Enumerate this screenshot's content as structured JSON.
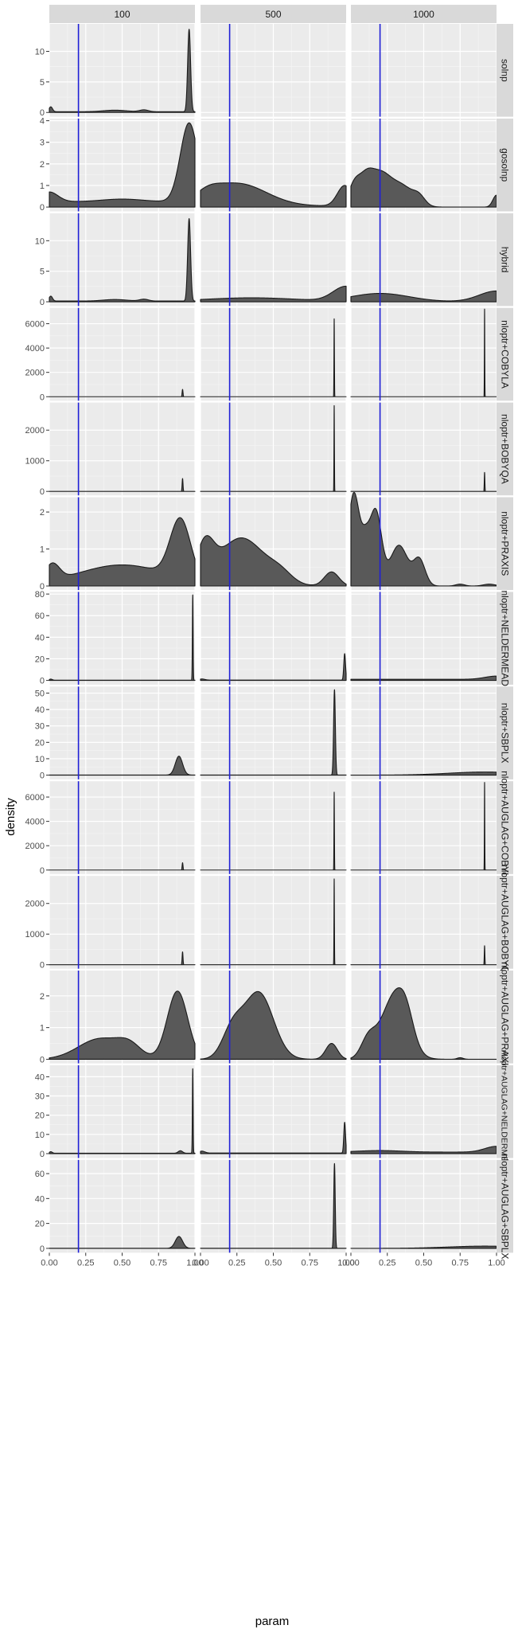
{
  "chart_data": {
    "type": "area",
    "xlabel": "param",
    "ylabel": "density",
    "xlim": [
      0,
      1
    ],
    "x_ticks": [
      "0.00",
      "0.25",
      "0.50",
      "0.75",
      "1.00"
    ],
    "reference_line": {
      "x": 0.2,
      "color": "#1f1fd6"
    },
    "columns": [
      "100",
      "500",
      "1000"
    ],
    "grid": true,
    "colors": {
      "panel_bg": "#ebebeb",
      "grid": "#ffffff",
      "strip_bg": "#d9d9d9",
      "fill": "#595959",
      "outline": "#1a1a1a"
    },
    "rows": [
      {
        "label": "solnp",
        "ylim": [
          -0.7,
          14.5
        ],
        "y_ticks": [
          {
            "v": 0,
            "label": "0"
          },
          {
            "v": 5,
            "label": "5"
          },
          {
            "v": 10,
            "label": "10"
          }
        ],
        "panels": [
          {
            "peaks": [
              {
                "c": 0.01,
                "w": 0.012,
                "h": 0.8
              },
              {
                "c": 0.45,
                "w": 0.08,
                "h": 0.25
              },
              {
                "c": 0.65,
                "w": 0.03,
                "h": 0.3
              },
              {
                "c": 0.96,
                "w": 0.01,
                "h": 13.5
              }
            ],
            "base": 0.12
          },
          null,
          null
        ]
      },
      {
        "label": "gosolnp",
        "ylim": [
          -0.2,
          4.1
        ],
        "y_ticks": [
          {
            "v": 0,
            "label": "0"
          },
          {
            "v": 1,
            "label": "1"
          },
          {
            "v": 2,
            "label": "2"
          },
          {
            "v": 3,
            "label": "3"
          },
          {
            "v": 4,
            "label": "4"
          }
        ],
        "panels": [
          {
            "peaks": [
              {
                "c": 0.0,
                "w": 0.06,
                "h": 0.45
              },
              {
                "c": 0.5,
                "w": 0.14,
                "h": 0.12
              },
              {
                "c": 0.96,
                "w": 0.06,
                "h": 3.65
              }
            ],
            "base": 0.25
          },
          {
            "peaks": [
              {
                "c": 0.05,
                "w": 0.08,
                "h": 0.3
              },
              {
                "c": 0.25,
                "w": 0.2,
                "h": 1.05
              },
              {
                "c": 0.99,
                "w": 0.05,
                "h": 0.95
              }
            ],
            "base": 0.05
          },
          {
            "peaks": [
              {
                "c": 0.02,
                "w": 0.04,
                "h": 0.9
              },
              {
                "c": 0.1,
                "w": 0.05,
                "h": 1.1
              },
              {
                "c": 0.2,
                "w": 0.07,
                "h": 1.4
              },
              {
                "c": 0.35,
                "w": 0.08,
                "h": 0.95
              },
              {
                "c": 0.47,
                "w": 0.04,
                "h": 0.35
              },
              {
                "c": 1.0,
                "w": 0.025,
                "h": 0.55
              }
            ],
            "base": 0.0
          }
        ]
      },
      {
        "label": "hybrid",
        "ylim": [
          -0.7,
          14.5
        ],
        "y_ticks": [
          {
            "v": 0,
            "label": "0"
          },
          {
            "v": 5,
            "label": "5"
          },
          {
            "v": 10,
            "label": "10"
          }
        ],
        "panels": [
          {
            "peaks": [
              {
                "c": 0.01,
                "w": 0.012,
                "h": 0.8
              },
              {
                "c": 0.45,
                "w": 0.08,
                "h": 0.25
              },
              {
                "c": 0.65,
                "w": 0.03,
                "h": 0.3
              },
              {
                "c": 0.96,
                "w": 0.01,
                "h": 13.5
              }
            ],
            "base": 0.12
          },
          {
            "peaks": [
              {
                "c": 0.35,
                "w": 0.3,
                "h": 0.55
              },
              {
                "c": 1.0,
                "w": 0.09,
                "h": 2.4
              }
            ],
            "base": 0.1
          },
          {
            "peaks": [
              {
                "c": 0.2,
                "w": 0.2,
                "h": 1.35
              },
              {
                "c": 1.0,
                "w": 0.12,
                "h": 1.75
              }
            ],
            "base": 0.02
          }
        ]
      },
      {
        "label": "nloptr+COBYLA",
        "ylim": [
          -330,
          7300
        ],
        "y_ticks": [
          {
            "v": 0,
            "label": "0"
          },
          {
            "v": 2000,
            "label": "2000"
          },
          {
            "v": 4000,
            "label": "4000"
          },
          {
            "v": 6000,
            "label": "6000"
          }
        ],
        "panels": [
          {
            "peaks": [
              {
                "c": 0.915,
                "w": 0.003,
                "h": 600
              }
            ],
            "base": 0
          },
          {
            "peaks": [
              {
                "c": 0.918,
                "w": 0.0015,
                "h": 6400
              }
            ],
            "base": 0
          },
          {
            "peaks": [
              {
                "c": 0.918,
                "w": 0.0013,
                "h": 7200
              }
            ],
            "base": 0
          }
        ]
      },
      {
        "label": "nloptr+BOBYQA",
        "ylim": [
          -130,
          2900
        ],
        "y_ticks": [
          {
            "v": 0,
            "label": "0"
          },
          {
            "v": 1000,
            "label": "1000"
          },
          {
            "v": 2000,
            "label": "2000"
          }
        ],
        "panels": [
          {
            "peaks": [
              {
                "c": 0.915,
                "w": 0.003,
                "h": 420
              }
            ],
            "base": 0
          },
          {
            "peaks": [
              {
                "c": 0.918,
                "w": 0.0015,
                "h": 2800
              }
            ],
            "base": 0
          },
          {
            "peaks": [
              {
                "c": 0.918,
                "w": 0.002,
                "h": 620
              }
            ],
            "base": 0
          }
        ]
      },
      {
        "label": "nloptr+PRAXIS",
        "ylim": [
          -0.11,
          2.4
        ],
        "y_ticks": [
          {
            "v": 0,
            "label": "0"
          },
          {
            "v": 1,
            "label": "1"
          },
          {
            "v": 2,
            "label": "2"
          }
        ],
        "panels": [
          {
            "peaks": [
              {
                "c": 0.02,
                "w": 0.05,
                "h": 0.45
              },
              {
                "c": 0.5,
                "w": 0.3,
                "h": 0.55
              },
              {
                "c": 0.9,
                "w": 0.07,
                "h": 1.6
              }
            ],
            "base": 0.02
          },
          {
            "peaks": [
              {
                "c": 0.03,
                "w": 0.06,
                "h": 0.95
              },
              {
                "c": 0.28,
                "w": 0.16,
                "h": 1.3
              },
              {
                "c": 0.55,
                "w": 0.08,
                "h": 0.25
              },
              {
                "c": 0.9,
                "w": 0.05,
                "h": 0.38
              }
            ],
            "base": 0.0
          },
          {
            "peaks": [
              {
                "c": 0.02,
                "w": 0.04,
                "h": 2.5
              },
              {
                "c": 0.1,
                "w": 0.03,
                "h": 0.9
              },
              {
                "c": 0.17,
                "w": 0.04,
                "h": 2.0
              },
              {
                "c": 0.33,
                "w": 0.06,
                "h": 1.1
              },
              {
                "c": 0.47,
                "w": 0.04,
                "h": 0.7
              },
              {
                "c": 0.75,
                "w": 0.03,
                "h": 0.05
              },
              {
                "c": 0.95,
                "w": 0.04,
                "h": 0.05
              }
            ],
            "base": 0.0
          }
        ]
      },
      {
        "label": "nloptr+NELDERMEAD",
        "ylim": [
          -4,
          82
        ],
        "y_ticks": [
          {
            "v": 0,
            "label": "0"
          },
          {
            "v": 20,
            "label": "20"
          },
          {
            "v": 40,
            "label": "40"
          },
          {
            "v": 60,
            "label": "60"
          },
          {
            "v": 80,
            "label": "80"
          }
        ],
        "panels": [
          {
            "peaks": [
              {
                "c": 0.01,
                "w": 0.01,
                "h": 1.0
              },
              {
                "c": 0.985,
                "w": 0.0025,
                "h": 79
              }
            ],
            "base": 0.2
          },
          {
            "peaks": [
              {
                "c": 0.01,
                "w": 0.02,
                "h": 1.0
              },
              {
                "c": 0.99,
                "w": 0.006,
                "h": 24.5
              }
            ],
            "base": 0.3
          },
          {
            "peaks": [
              {
                "c": 1.0,
                "w": 0.08,
                "h": 3.0
              }
            ],
            "base": 1.0
          }
        ]
      },
      {
        "label": "nloptr+SBPLX",
        "ylim": [
          -2.6,
          54
        ],
        "y_ticks": [
          {
            "v": 0,
            "label": "0"
          },
          {
            "v": 10,
            "label": "10"
          },
          {
            "v": 20,
            "label": "20"
          },
          {
            "v": 30,
            "label": "30"
          },
          {
            "v": 40,
            "label": "40"
          },
          {
            "v": 50,
            "label": "50"
          }
        ],
        "panels": [
          {
            "peaks": [
              {
                "c": 0.89,
                "w": 0.025,
                "h": 11.5
              }
            ],
            "base": 0.05
          },
          {
            "peaks": [
              {
                "c": 0.92,
                "w": 0.006,
                "h": 52
              }
            ],
            "base": 0.05
          },
          {
            "peaks": [
              {
                "c": 0.92,
                "w": 0.25,
                "h": 1.9
              }
            ],
            "base": 0.0
          }
        ]
      },
      {
        "label": "nloptr+AUGLAG+COBYLA",
        "ylim": [
          -330,
          7300
        ],
        "y_ticks": [
          {
            "v": 0,
            "label": "0"
          },
          {
            "v": 2000,
            "label": "2000"
          },
          {
            "v": 4000,
            "label": "4000"
          },
          {
            "v": 6000,
            "label": "6000"
          }
        ],
        "panels": [
          {
            "peaks": [
              {
                "c": 0.915,
                "w": 0.003,
                "h": 600
              }
            ],
            "base": 0
          },
          {
            "peaks": [
              {
                "c": 0.918,
                "w": 0.0015,
                "h": 6400
              }
            ],
            "base": 0
          },
          {
            "peaks": [
              {
                "c": 0.918,
                "w": 0.0013,
                "h": 7200
              }
            ],
            "base": 0
          }
        ]
      },
      {
        "label": "nloptr+AUGLAG+BOBYQA",
        "ylim": [
          -130,
          2900
        ],
        "y_ticks": [
          {
            "v": 0,
            "label": "0"
          },
          {
            "v": 1000,
            "label": "1000"
          },
          {
            "v": 2000,
            "label": "2000"
          }
        ],
        "panels": [
          {
            "peaks": [
              {
                "c": 0.915,
                "w": 0.003,
                "h": 420
              }
            ],
            "base": 0
          },
          {
            "peaks": [
              {
                "c": 0.918,
                "w": 0.0015,
                "h": 2800
              }
            ],
            "base": 0
          },
          {
            "peaks": [
              {
                "c": 0.918,
                "w": 0.002,
                "h": 620
              }
            ],
            "base": 0
          }
        ]
      },
      {
        "label": "nloptr+AUGLAG+PRAXIS",
        "ylim": [
          -0.13,
          2.8
        ],
        "y_ticks": [
          {
            "v": 0,
            "label": "0"
          },
          {
            "v": 1,
            "label": "1"
          },
          {
            "v": 2,
            "label": "2"
          }
        ],
        "panels": [
          {
            "peaks": [
              {
                "c": 0.35,
                "w": 0.15,
                "h": 0.65
              },
              {
                "c": 0.55,
                "w": 0.08,
                "h": 0.35
              },
              {
                "c": 0.88,
                "w": 0.07,
                "h": 2.15
              }
            ],
            "base": 0.0
          },
          {
            "peaks": [
              {
                "c": 0.22,
                "w": 0.07,
                "h": 0.9
              },
              {
                "c": 0.4,
                "w": 0.1,
                "h": 2.1
              },
              {
                "c": 0.9,
                "w": 0.04,
                "h": 0.5
              }
            ],
            "base": 0.0
          },
          {
            "peaks": [
              {
                "c": 0.12,
                "w": 0.05,
                "h": 0.6
              },
              {
                "c": 0.3,
                "w": 0.09,
                "h": 2.0
              },
              {
                "c": 0.38,
                "w": 0.05,
                "h": 0.6
              },
              {
                "c": 0.75,
                "w": 0.02,
                "h": 0.05
              }
            ],
            "base": 0.0
          }
        ]
      },
      {
        "label": "nloptr+AUGLAG+NELDERMEAD",
        "ylim": [
          -2.3,
          46
        ],
        "y_ticks": [
          {
            "v": 0,
            "label": "0"
          },
          {
            "v": 10,
            "label": "10"
          },
          {
            "v": 20,
            "label": "20"
          },
          {
            "v": 30,
            "label": "30"
          },
          {
            "v": 40,
            "label": "40"
          }
        ],
        "panels": [
          {
            "peaks": [
              {
                "c": 0.01,
                "w": 0.01,
                "h": 0.8
              },
              {
                "c": 0.9,
                "w": 0.015,
                "h": 1.3
              },
              {
                "c": 0.985,
                "w": 0.0025,
                "h": 44
              }
            ],
            "base": 0.2
          },
          {
            "peaks": [
              {
                "c": 0.01,
                "w": 0.02,
                "h": 1.0
              },
              {
                "c": 0.99,
                "w": 0.006,
                "h": 16
              }
            ],
            "base": 0.3
          },
          {
            "peaks": [
              {
                "c": 0.2,
                "w": 0.15,
                "h": 0.8
              },
              {
                "c": 1.0,
                "w": 0.08,
                "h": 3.0
              }
            ],
            "base": 0.8
          }
        ]
      },
      {
        "label": "nloptr+AUGLAG+SBPLX",
        "ylim": [
          -3.5,
          71
        ],
        "y_ticks": [
          {
            "v": 0,
            "label": "0"
          },
          {
            "v": 20,
            "label": "20"
          },
          {
            "v": 40,
            "label": "40"
          },
          {
            "v": 60,
            "label": "60"
          }
        ],
        "panels": [
          {
            "peaks": [
              {
                "c": 0.89,
                "w": 0.025,
                "h": 9.5
              }
            ],
            "base": 0.05
          },
          {
            "peaks": [
              {
                "c": 0.92,
                "w": 0.005,
                "h": 68
              }
            ],
            "base": 0.05
          },
          {
            "peaks": [
              {
                "c": 0.92,
                "w": 0.25,
                "h": 1.8
              }
            ],
            "base": 0.0
          }
        ]
      }
    ]
  }
}
